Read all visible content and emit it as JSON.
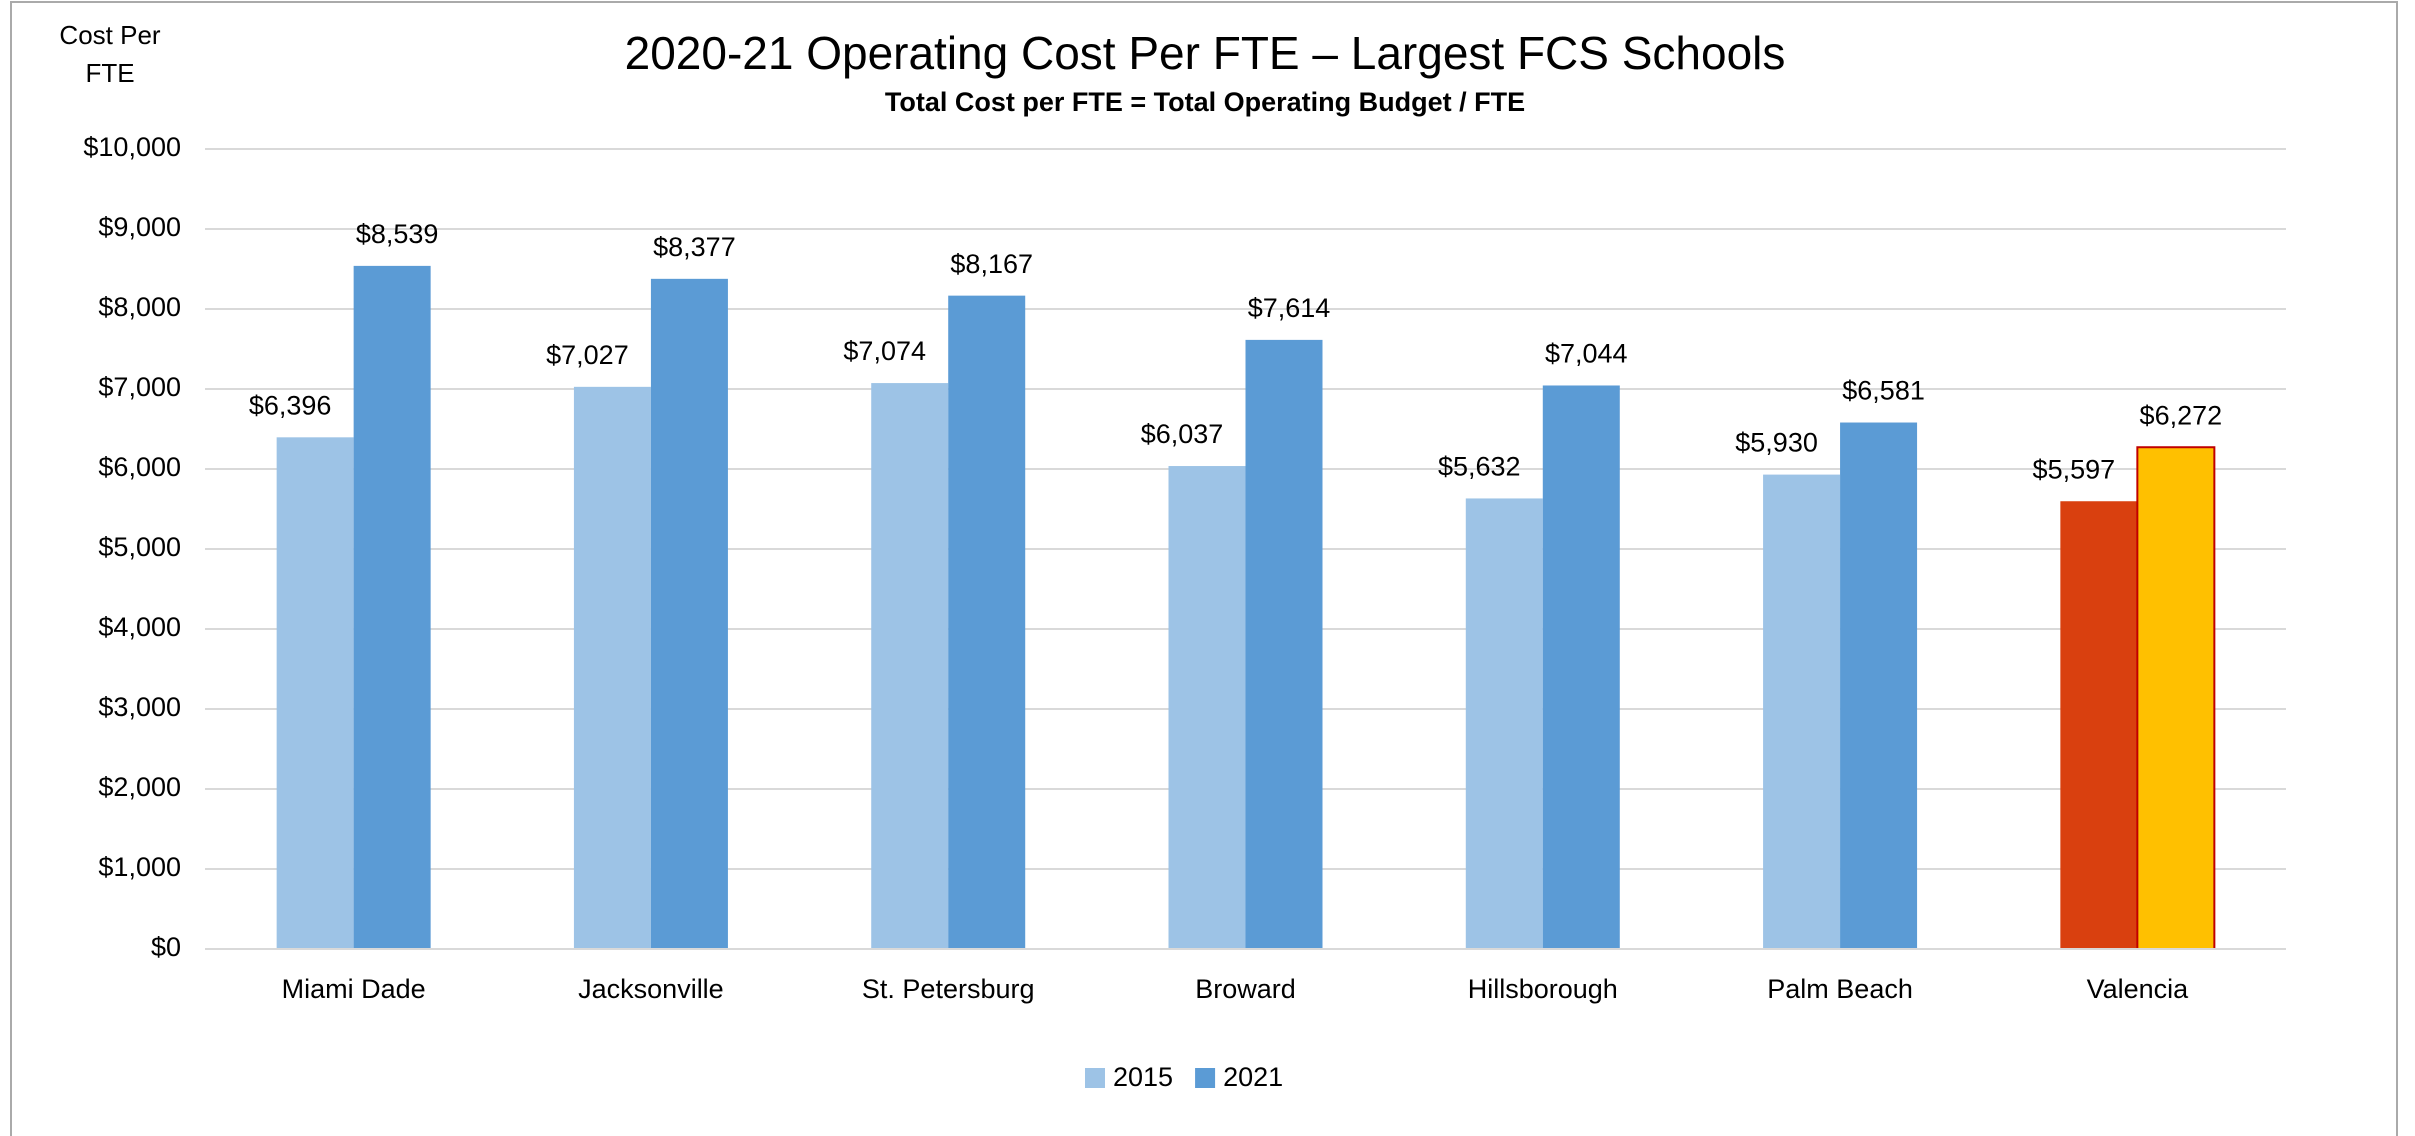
{
  "chart_data": {
    "type": "bar",
    "title": "2020-21 Operating Cost Per FTE – Largest FCS Schools",
    "subtitle": "Total Cost per FTE = Total Operating Budget  / FTE",
    "y_label": "Cost Per FTE",
    "categories": [
      "Miami Dade",
      "Jacksonville",
      "St. Petersburg",
      "Broward",
      "Hillsborough",
      "Palm Beach",
      "Valencia"
    ],
    "series": [
      {
        "name": "2015",
        "color": "#9dc3e6",
        "colors": [
          "#9dc3e6",
          "#9dc3e6",
          "#9dc3e6",
          "#9dc3e6",
          "#9dc3e6",
          "#9dc3e6",
          "#d9400f"
        ],
        "values": [
          6396,
          7027,
          7074,
          6037,
          5632,
          5930,
          5597
        ],
        "value_labels": [
          "$6,396",
          "$7,027",
          "$7,074",
          "$6,037",
          "$5,632",
          "$5,930",
          "$5,597"
        ]
      },
      {
        "name": "2021",
        "color": "#5b9bd5",
        "colors": [
          "#5b9bd5",
          "#5b9bd5",
          "#5b9bd5",
          "#5b9bd5",
          "#5b9bd5",
          "#5b9bd5",
          "#ffc000"
        ],
        "values": [
          8539,
          8377,
          8167,
          7614,
          7044,
          6581,
          6272
        ],
        "value_labels": [
          "$8,539",
          "$8,377",
          "$8,167",
          "$7,614",
          "$7,044",
          "$6,581",
          "$6,272"
        ]
      }
    ],
    "ylim": [
      0,
      10000
    ],
    "yticks": [
      {
        "value": 0,
        "label": "$0"
      },
      {
        "value": 1000,
        "label": "$1,000"
      },
      {
        "value": 2000,
        "label": "$2,000"
      },
      {
        "value": 3000,
        "label": "$3,000"
      },
      {
        "value": 4000,
        "label": "$4,000"
      },
      {
        "value": 5000,
        "label": "$5,000"
      },
      {
        "value": 6000,
        "label": "$6,000"
      },
      {
        "value": 7000,
        "label": "$7,000"
      },
      {
        "value": 8000,
        "label": "$8,000"
      },
      {
        "value": 9000,
        "label": "$9,000"
      },
      {
        "value": 10000,
        "label": "$10,000"
      }
    ],
    "grid": true,
    "legend": "bottom"
  }
}
